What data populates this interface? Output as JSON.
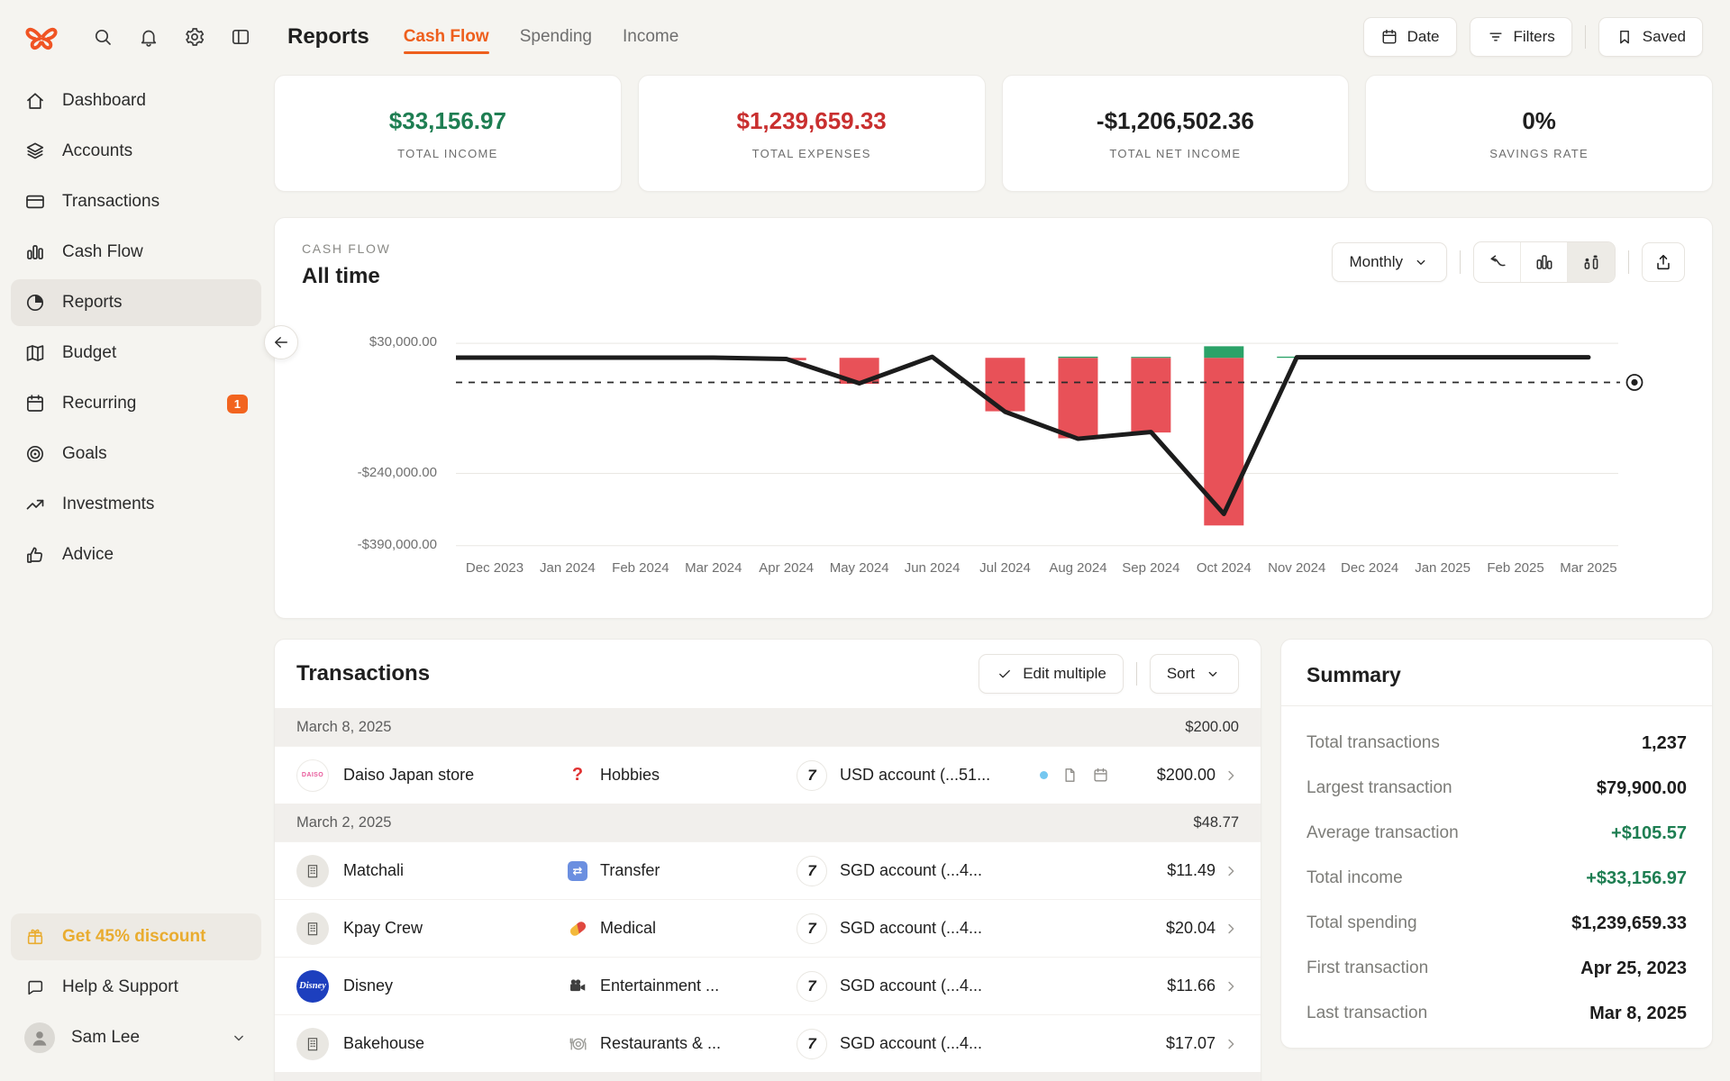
{
  "colors": {
    "accent": "#ee5f1d",
    "green": "#1e7e52",
    "red": "#c92f2f",
    "bar_green": "#2ba268",
    "bar_red": "#e85158",
    "promo": "#e9ac2f"
  },
  "topbar": {
    "title": "Reports",
    "quick_icons": [
      "search",
      "bell",
      "gear",
      "panel"
    ],
    "tabs": [
      {
        "label": "Cash Flow",
        "active": true
      },
      {
        "label": "Spending",
        "active": false
      },
      {
        "label": "Income",
        "active": false
      }
    ],
    "actions": [
      {
        "label": "Date",
        "icon": "calendar"
      },
      {
        "label": "Filters",
        "icon": "filter"
      },
      {
        "label": "Saved",
        "icon": "bookmark",
        "divider_before": true
      }
    ]
  },
  "sidebar": {
    "items": [
      {
        "label": "Dashboard",
        "icon": "home"
      },
      {
        "label": "Accounts",
        "icon": "layers"
      },
      {
        "label": "Transactions",
        "icon": "credit-card"
      },
      {
        "label": "Cash Flow",
        "icon": "bar-chart"
      },
      {
        "label": "Reports",
        "icon": "pie-chart",
        "active": true
      },
      {
        "label": "Budget",
        "icon": "map"
      },
      {
        "label": "Recurring",
        "icon": "calendar",
        "badge": "1"
      },
      {
        "label": "Goals",
        "icon": "target"
      },
      {
        "label": "Investments",
        "icon": "trending-up"
      },
      {
        "label": "Advice",
        "icon": "thumb-up"
      }
    ],
    "promo_label": "Get 45% discount",
    "help_label": "Help & Support",
    "user_name": "Sam Lee"
  },
  "stats": [
    {
      "value": "$33,156.97",
      "label": "TOTAL INCOME",
      "color": "#1e7e52"
    },
    {
      "value": "$1,239,659.33",
      "label": "TOTAL EXPENSES",
      "color": "#c92f2f"
    },
    {
      "value": "-$1,206,502.36",
      "label": "TOTAL NET INCOME",
      "color": "#1f1f1f"
    },
    {
      "value": "0%",
      "label": "SAVINGS RATE",
      "color": "#1f1f1f"
    }
  ],
  "chart": {
    "eyebrow": "CASH FLOW",
    "title": "All time",
    "period_label": "Monthly"
  },
  "chart_data": {
    "type": "bar",
    "subtype": "combo-bar-line",
    "title": "Cash Flow",
    "subtitle": "All time",
    "granularity": "Monthly",
    "x": [
      "Dec 2023",
      "Jan 2024",
      "Feb 2024",
      "Mar 2024",
      "Apr 2024",
      "May 2024",
      "Jun 2024",
      "Jul 2024",
      "Aug 2024",
      "Sep 2024",
      "Oct 2024",
      "Nov 2024",
      "Dec 2024",
      "Jan 2025",
      "Feb 2025",
      "Mar 2025"
    ],
    "series": [
      {
        "name": "Income",
        "type": "bar",
        "color": "#2ba268",
        "values": [
          0,
          0,
          0,
          0,
          0,
          0,
          0,
          0,
          2500,
          2000,
          24000,
          2500,
          0,
          0,
          2000,
          0
        ]
      },
      {
        "name": "Expenses",
        "type": "bar",
        "color": "#e85158",
        "values": [
          0,
          0,
          0,
          0,
          -5000,
          -54000,
          0,
          -111000,
          -167000,
          -155000,
          -348000,
          0,
          0,
          0,
          0,
          0
        ]
      },
      {
        "name": "Net income",
        "type": "line",
        "color": "#1c1c1c",
        "values": [
          500,
          500,
          500,
          500,
          -2500,
          -53000,
          2000,
          -112000,
          -168000,
          -154000,
          -324000,
          1000,
          1000,
          1000,
          1000,
          1000
        ]
      }
    ],
    "average_line": -51000,
    "yticks": [
      {
        "value": 30000,
        "label": "$30,000.00"
      },
      {
        "value": -240000,
        "label": "-$240,000.00"
      },
      {
        "value": -390000,
        "label": "-$390,000.00"
      }
    ],
    "ylim": [
      -411000,
      56500
    ],
    "grid": true,
    "legend": "none"
  },
  "transactions": {
    "title": "Transactions",
    "edit_label": "Edit multiple",
    "sort_label": "Sort",
    "groups": [
      {
        "date": "March 8, 2025",
        "total": "$200.00",
        "rows": [
          {
            "merchant": "Daiso Japan store",
            "logo": "daiso",
            "logo_text": "DAISO",
            "category": "Hobbies",
            "category_icon": "question",
            "account": "USD account (...51...",
            "bank_text": "7",
            "flags": [
              "dot",
              "file",
              "calendar"
            ],
            "amount": "$200.00"
          }
        ]
      },
      {
        "date": "March 2, 2025",
        "total": "$48.77",
        "rows": [
          {
            "merchant": "Matchali",
            "logo": "building",
            "category": "Transfer",
            "category_icon": "transfer",
            "account": "SGD account (...4...",
            "bank_text": "7",
            "flags": [],
            "amount": "$11.49"
          },
          {
            "merchant": "Kpay Crew",
            "logo": "building",
            "category": "Medical",
            "category_icon": "pill",
            "account": "SGD account (...4...",
            "bank_text": "7",
            "flags": [],
            "amount": "$20.04"
          },
          {
            "merchant": "Disney",
            "logo": "disney",
            "logo_text": "Disney",
            "category": "Entertainment ...",
            "category_icon": "movie",
            "account": "SGD account (...4...",
            "bank_text": "7",
            "flags": [],
            "amount": "$11.66"
          },
          {
            "merchant": "Bakehouse",
            "logo": "building",
            "category": "Restaurants & ...",
            "category_icon": "plate",
            "account": "SGD account (...4...",
            "bank_text": "7",
            "flags": [],
            "amount": "$17.07"
          }
        ]
      }
    ],
    "has_partial_next_group": true
  },
  "summary": {
    "title": "Summary",
    "rows": [
      {
        "label": "Total transactions",
        "value": "1,237"
      },
      {
        "label": "Largest transaction",
        "value": "$79,900.00"
      },
      {
        "label": "Average transaction",
        "value": "+$105.57",
        "color": "#1e7e52"
      },
      {
        "label": "Total income",
        "value": "+$33,156.97",
        "color": "#1e7e52"
      },
      {
        "label": "Total spending",
        "value": "$1,239,659.33"
      },
      {
        "label": "First transaction",
        "value": "Apr 25, 2023"
      },
      {
        "label": "Last transaction",
        "value": "Mar 8, 2025"
      }
    ]
  }
}
